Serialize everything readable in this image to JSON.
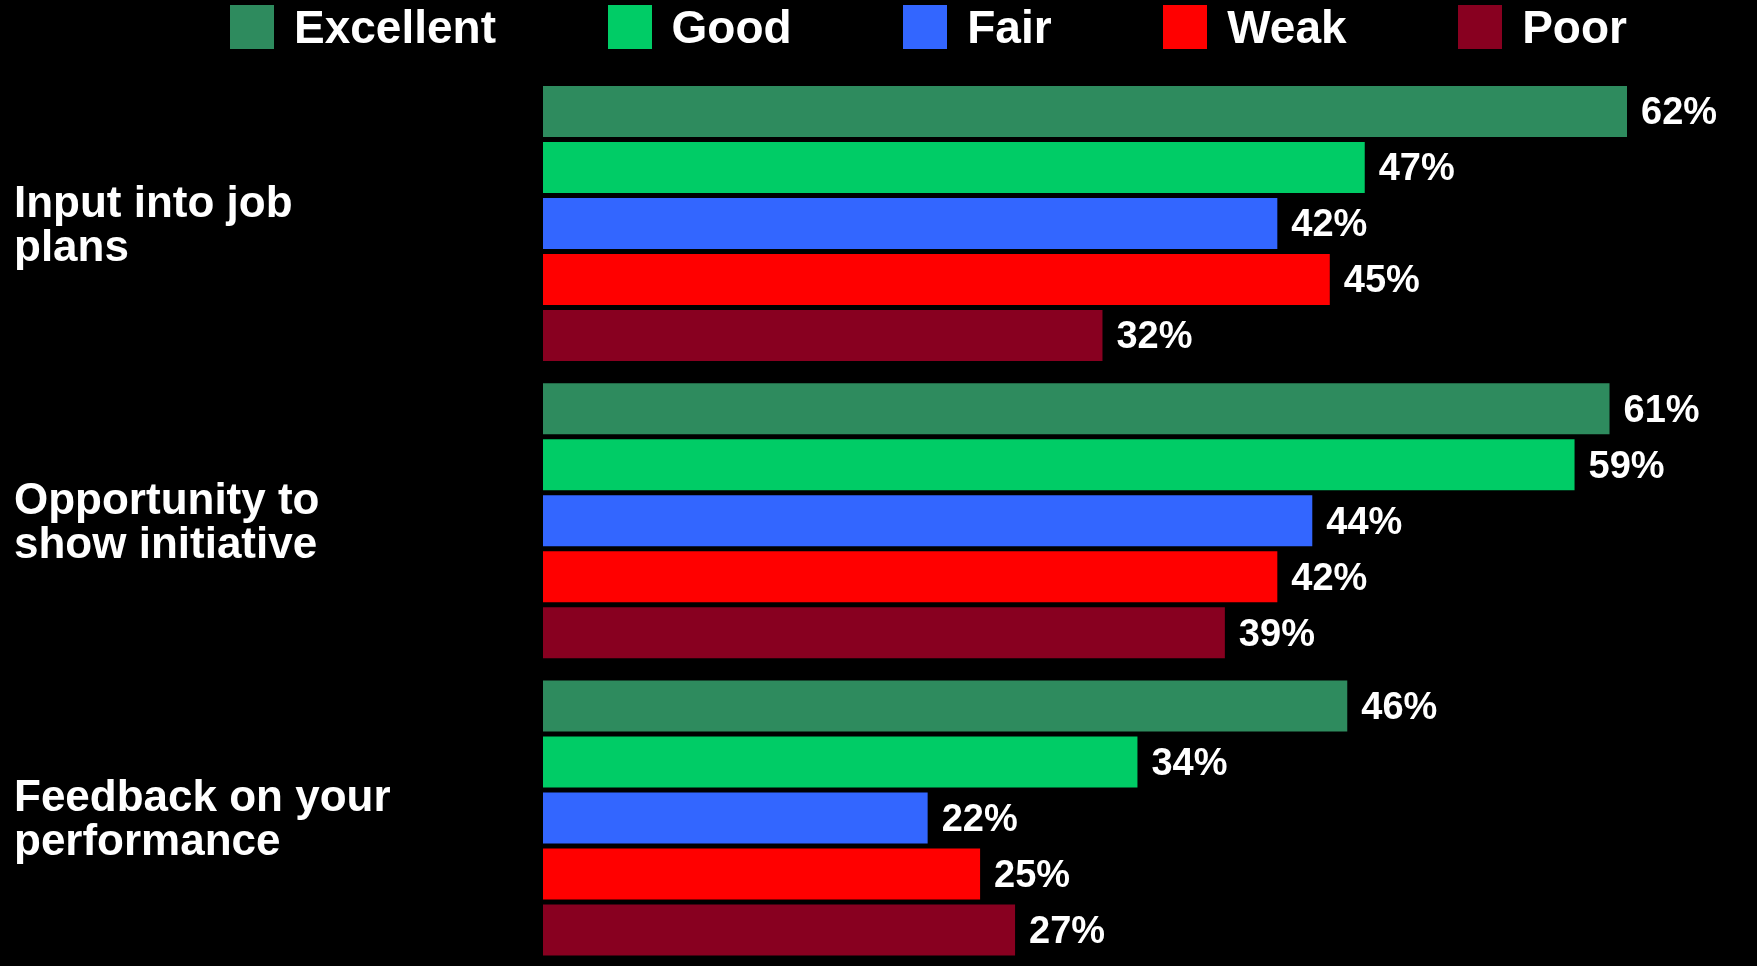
{
  "chart_data": {
    "type": "bar",
    "orientation": "horizontal",
    "legend": "top",
    "grid": false,
    "categories": [
      "Input into job plans",
      "Opportunity to show initiative",
      "Feedback on your performance"
    ],
    "series": [
      {
        "name": "Excellent",
        "color": "#2e8b5e",
        "values": [
          62,
          61,
          46
        ],
        "value_labels": [
          "62%",
          "61%",
          "46%"
        ]
      },
      {
        "name": "Good",
        "color": "#00cc66",
        "values": [
          47,
          59,
          34
        ],
        "value_labels": [
          "47%",
          "59%",
          "34%"
        ]
      },
      {
        "name": "Fair",
        "color": "#3366ff",
        "values": [
          42,
          44,
          22
        ],
        "value_labels": [
          "42%",
          "44%",
          "22%"
        ]
      },
      {
        "name": "Weak",
        "color": "#ff0000",
        "values": [
          45,
          42,
          25
        ],
        "value_labels": [
          "45%",
          "42%",
          "25%"
        ]
      },
      {
        "name": "Poor",
        "color": "#880020",
        "values": [
          32,
          39,
          27
        ],
        "value_labels": [
          "32%",
          "39%",
          "27%"
        ]
      }
    ]
  }
}
